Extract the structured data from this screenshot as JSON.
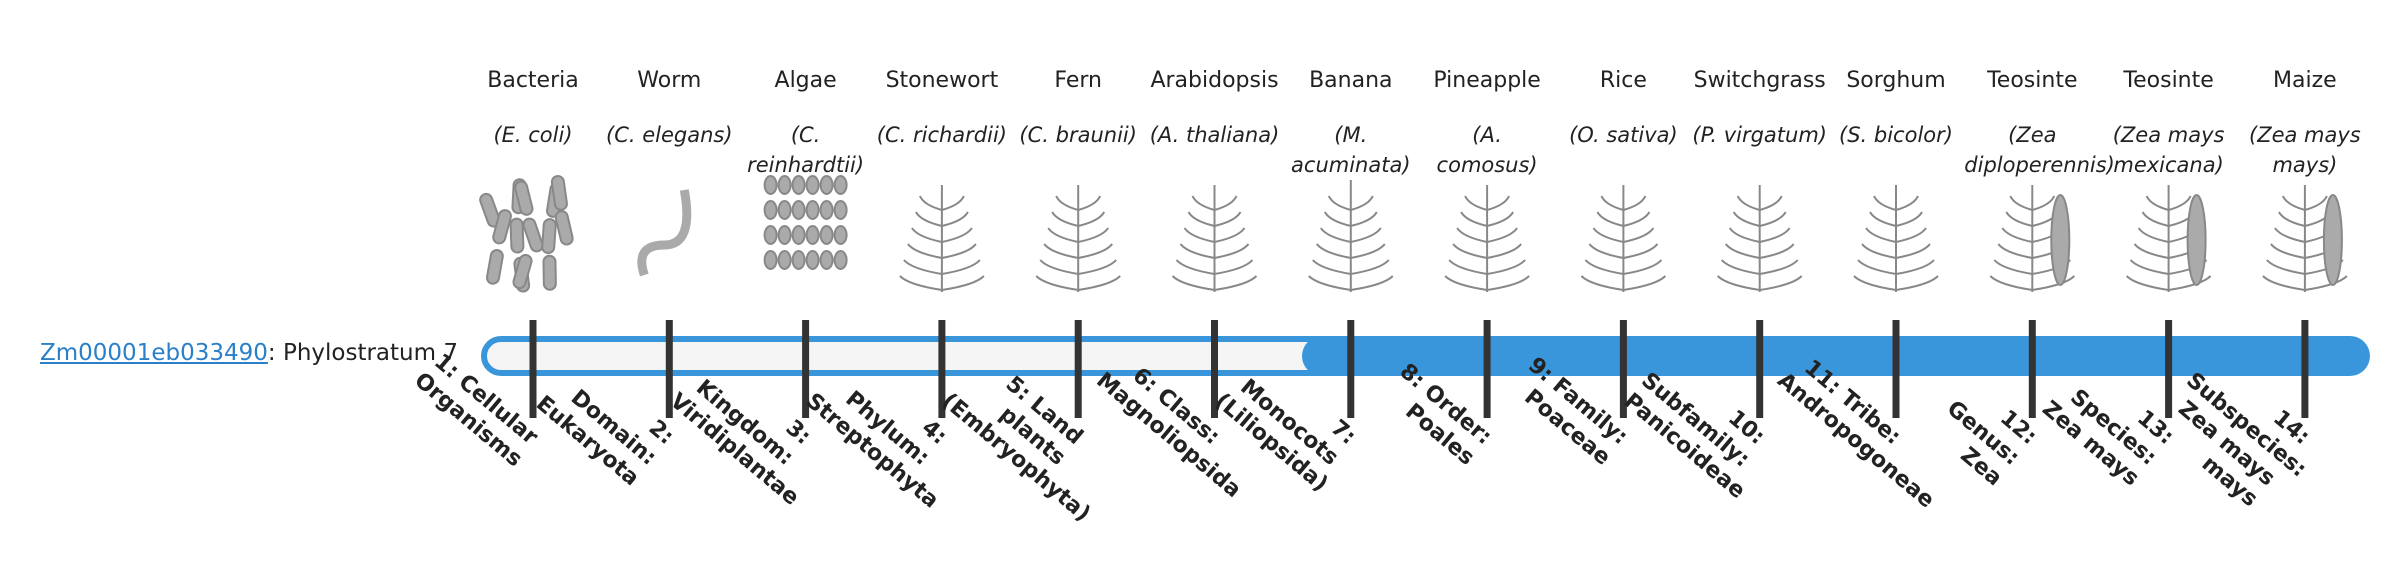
{
  "gene": {
    "link": "Zm00001eb033490",
    "label": ": Phylostratum 7"
  },
  "organisms": [
    {
      "name": "Bacteria",
      "species": "(E. coli)"
    },
    {
      "name": "Worm",
      "species": "(C. elegans)"
    },
    {
      "name": "Algae",
      "species": "(C. reinhardtii)"
    },
    {
      "name": "Stonewort",
      "species": "(C. richardii)"
    },
    {
      "name": "Fern",
      "species": "(C. braunii)"
    },
    {
      "name": "Arabidopsis",
      "species": "(A. thaliana)"
    },
    {
      "name": "Banana",
      "species": "(M. acuminata)"
    },
    {
      "name": "Pineapple",
      "species": "(A. comosus)"
    },
    {
      "name": "Rice",
      "species": "(O. sativa)"
    },
    {
      "name": "Switchgrass",
      "species": "(P. virgatum)"
    },
    {
      "name": "Sorghum",
      "species": "(S. bicolor)"
    },
    {
      "name": "Teosinte",
      "species": "(Zea diploperennis)"
    },
    {
      "name": "Teosinte",
      "species": "(Zea mays mexicana)"
    },
    {
      "name": "Maize",
      "species": "(Zea mays mays)"
    }
  ],
  "strata": [
    "1: Cellular Organisms",
    "2: Domain: Eukaryota",
    "3: Kingdom: Viridiplantae",
    "4: Phylum: Streptophyta",
    "5: Land plants (Embryophyta)",
    "6: Class: Magnoliopsida",
    "7: Monocots (Liliopsida)",
    "8: Order: Poales",
    "9: Family: Poaceae",
    "10: Subfamily: Panicoideae",
    "11: Tribe: Andropogoneae",
    "12: Genus: Zea",
    "13: Species: Zea mays",
    "14: Subspecies: Zea mays mays"
  ]
}
